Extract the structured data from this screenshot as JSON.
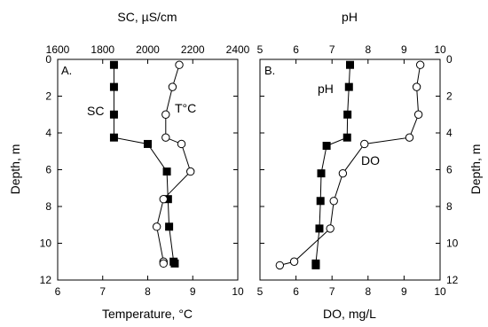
{
  "chart_data": [
    {
      "type": "line",
      "panel_label": "A.",
      "ylabel_left": "Depth, m",
      "ylim": [
        12,
        0
      ],
      "yticks": [
        0,
        2,
        4,
        6,
        8,
        10,
        12
      ],
      "bottom_axis": {
        "label": "Temperature, °C",
        "lim": [
          6,
          10
        ],
        "ticks": [
          6,
          7,
          8,
          9,
          10
        ]
      },
      "top_axis": {
        "label": "SC, µS/cm",
        "lim": [
          1600,
          2400
        ],
        "ticks": [
          1600,
          1800,
          2000,
          2200,
          2400
        ]
      },
      "series": [
        {
          "name": "SC",
          "axis": "top",
          "marker": "filled-square",
          "x": [
            1850,
            1850,
            1850,
            1850,
            2000,
            2085,
            2090,
            2095,
            2115,
            2120
          ],
          "y": [
            0.3,
            1.5,
            3.0,
            4.25,
            4.6,
            6.1,
            7.6,
            9.1,
            11.0,
            11.1
          ]
        },
        {
          "name": "T°C",
          "axis": "bottom",
          "marker": "open-circle",
          "x": [
            8.7,
            8.55,
            8.4,
            8.4,
            8.75,
            8.95,
            8.35,
            8.2,
            8.35,
            8.35
          ],
          "y": [
            0.3,
            1.5,
            3.0,
            4.25,
            4.6,
            6.1,
            7.6,
            9.1,
            11.0,
            11.1
          ]
        }
      ]
    },
    {
      "type": "line",
      "panel_label": "B.",
      "ylabel_right": "Depth, m",
      "ylim": [
        12,
        0
      ],
      "yticks": [
        0,
        2,
        4,
        6,
        8,
        10,
        12
      ],
      "bottom_axis": {
        "label": "DO, mg/L",
        "lim": [
          5,
          10
        ],
        "ticks": [
          5,
          6,
          7,
          8,
          9,
          10
        ]
      },
      "top_axis": {
        "label": "pH",
        "lim": [
          5,
          10
        ],
        "ticks": [
          5,
          6,
          7,
          8,
          9,
          10
        ]
      },
      "series": [
        {
          "name": "pH",
          "axis": "top",
          "marker": "filled-square",
          "x": [
            7.5,
            7.47,
            7.43,
            7.42,
            6.85,
            6.7,
            6.68,
            6.65,
            6.55,
            6.55
          ],
          "y": [
            0.3,
            1.5,
            3.0,
            4.25,
            4.7,
            6.2,
            7.7,
            9.2,
            11.1,
            11.2
          ]
        },
        {
          "name": "DO",
          "axis": "bottom",
          "marker": "open-circle",
          "x": [
            9.45,
            9.35,
            9.4,
            9.15,
            7.9,
            7.3,
            7.05,
            6.95,
            5.95,
            5.55
          ],
          "y": [
            0.3,
            1.5,
            3.0,
            4.25,
            4.6,
            6.2,
            7.7,
            9.2,
            11.0,
            11.2
          ]
        }
      ]
    }
  ]
}
